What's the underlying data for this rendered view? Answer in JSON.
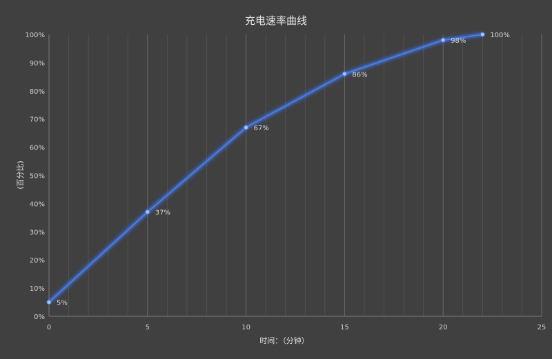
{
  "chart_data": {
    "type": "line",
    "title": "充电速率曲线",
    "xlabel": "时间：（分钟）",
    "ylabel": "(百分比)",
    "x": [
      0,
      5,
      10,
      15,
      20,
      22
    ],
    "series": [
      {
        "values": [
          5,
          37,
          67,
          86,
          98,
          100
        ]
      }
    ],
    "point_labels": [
      "5%",
      "37%",
      "67%",
      "86%",
      "98%",
      "100%"
    ],
    "xlim": [
      0,
      25
    ],
    "ylim": [
      0,
      100
    ],
    "x_ticks": [
      0,
      5,
      10,
      15,
      20,
      25
    ],
    "x_tick_labels": [
      "0",
      "5",
      "10",
      "15",
      "20",
      "25"
    ],
    "y_ticks": [
      0,
      10,
      20,
      30,
      40,
      50,
      60,
      70,
      80,
      90,
      100
    ],
    "y_tick_labels": [
      "0%",
      "10%",
      "20%",
      "30%",
      "40%",
      "50%",
      "60%",
      "70%",
      "80%",
      "90%",
      "100%"
    ],
    "grid": {
      "major_x": true,
      "minor_x": true,
      "y": false
    },
    "legend": "none",
    "colors": {
      "background": "#404040",
      "line": "#4a7de0",
      "glow": "#3f6fe8",
      "grid_major": "#6a6a6a",
      "grid_minor": "#555555",
      "text": "#d0d0d0"
    }
  }
}
